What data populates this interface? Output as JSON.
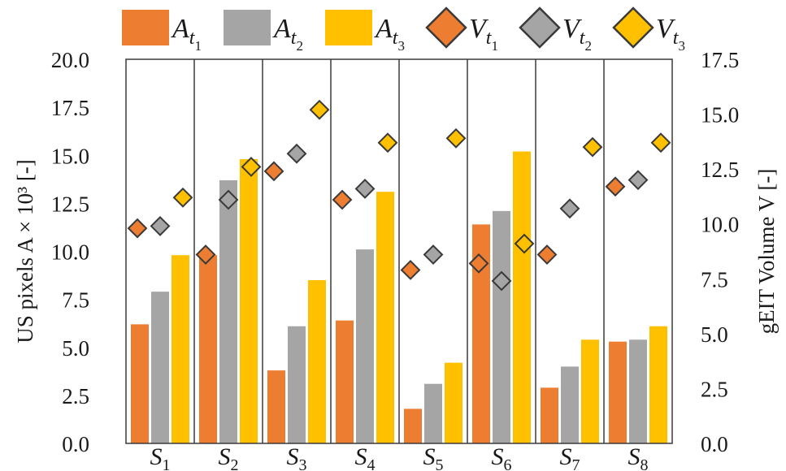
{
  "chart_data": {
    "type": "bar",
    "categories": [
      "1",
      "2",
      "3",
      "4",
      "5",
      "6",
      "7",
      "8"
    ],
    "category_prefix": "S",
    "y_label_left": "US pixels A × 10³ [-]",
    "y_label_right": "gEIT Volume V [-]",
    "ylim_left": [
      0,
      20
    ],
    "ylim_right": [
      0,
      17.5
    ],
    "yticks_left": [
      "0.0",
      "2.5",
      "5.0",
      "7.5",
      "10.0",
      "12.5",
      "15.0",
      "17.5",
      "20.0"
    ],
    "yticks_right": [
      "0.0",
      "2.5",
      "5.0",
      "7.5",
      "10.0",
      "12.5",
      "15.0",
      "17.5"
    ],
    "bar_series": [
      {
        "symbol": "A",
        "sub": "1",
        "color": "#ed7d31",
        "values": [
          6.2,
          9.8,
          3.8,
          6.4,
          1.8,
          11.4,
          2.9,
          5.3
        ]
      },
      {
        "symbol": "A",
        "sub": "2",
        "color": "#a5a5a5",
        "values": [
          7.9,
          13.7,
          6.1,
          10.1,
          3.1,
          12.1,
          4.0,
          5.4
        ]
      },
      {
        "symbol": "A",
        "sub": "3",
        "color": "#ffc000",
        "values": [
          9.8,
          14.8,
          8.5,
          13.1,
          4.2,
          15.2,
          5.4,
          6.1
        ]
      }
    ],
    "marker_series": [
      {
        "symbol": "V",
        "sub": "1",
        "color": "#ed7d31",
        "values": [
          9.8,
          8.6,
          12.4,
          11.1,
          7.9,
          8.2,
          8.6,
          11.7
        ]
      },
      {
        "symbol": "V",
        "sub": "2",
        "color": "#a5a5a5",
        "values": [
          9.9,
          11.1,
          13.2,
          11.6,
          8.6,
          7.4,
          10.7,
          12.0
        ]
      },
      {
        "symbol": "V",
        "sub": "3",
        "color": "#ffc000",
        "values": [
          11.2,
          12.6,
          15.2,
          13.7,
          13.9,
          9.1,
          13.5,
          13.7
        ]
      }
    ],
    "legend_position": "top",
    "grid": false
  }
}
